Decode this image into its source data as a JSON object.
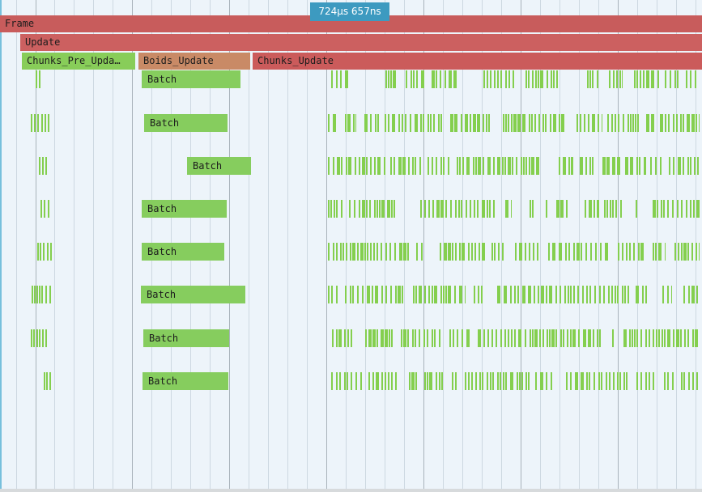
{
  "cursor": {
    "time_label": "724μs 657ns"
  },
  "colors": {
    "frame": "#c85c5c",
    "update": "#cc6060",
    "chunks_pre_update": "#88cd59",
    "boids_update": "#c98a66",
    "chunks_update": "#cb5b5b",
    "batch": "#86cd5e",
    "tick": "#84cf4e",
    "cursor": "#3d9ac0"
  },
  "zones": {
    "frame": {
      "label": "Frame"
    },
    "update": {
      "label": "Update"
    },
    "chunks_pre_update": {
      "label": "Chunks_Pre_Upda…"
    },
    "boids_update": {
      "label": "Boids_Update"
    },
    "chunks_update": {
      "label": "Chunks_Update"
    }
  },
  "threads": [
    {
      "batch_label": "Batch"
    },
    {
      "batch_label": "Batch"
    },
    {
      "batch_label": "Batch"
    },
    {
      "batch_label": "Batch"
    },
    {
      "batch_label": "Batch"
    },
    {
      "batch_label": "Batch"
    },
    {
      "batch_label": "Batch"
    },
    {
      "batch_label": "Batch"
    }
  ]
}
